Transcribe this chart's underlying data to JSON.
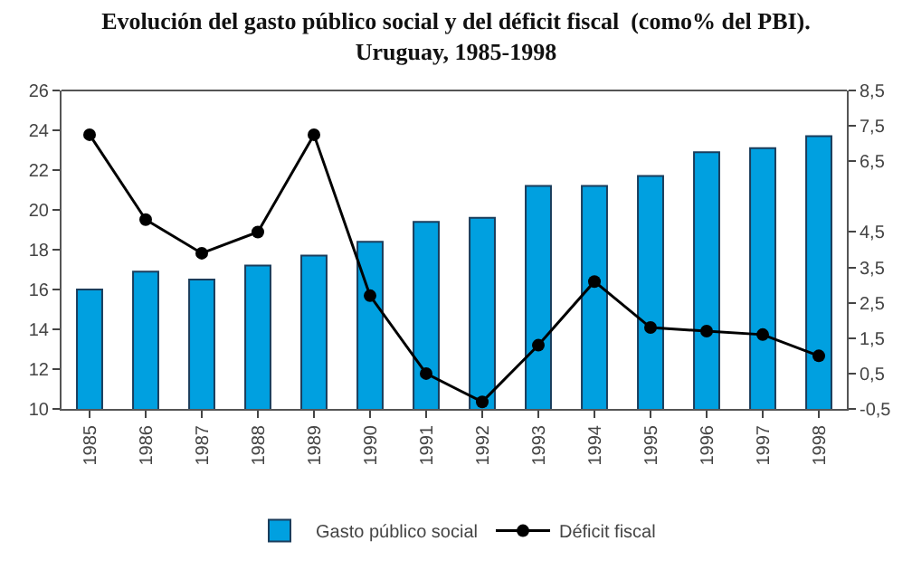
{
  "chart_data": {
    "type": "bar",
    "title": "Evolución del gasto público social y del déficit fiscal  (como% del PBI).\nUruguay, 1985-1998",
    "categories": [
      "1985",
      "1986",
      "1987",
      "1988",
      "1989",
      "1990",
      "1991",
      "1992",
      "1993",
      "1994",
      "1995",
      "1996",
      "1997",
      "1998"
    ],
    "series": [
      {
        "name": "Gasto público social",
        "color": "#00a0e0",
        "values": [
          16.0,
          16.9,
          16.5,
          17.2,
          17.7,
          18.4,
          19.4,
          19.6,
          21.2,
          21.2,
          21.7,
          22.9,
          23.1,
          23.7
        ]
      },
      {
        "name": "Déficit fiscal",
        "type": "line",
        "axis": "y2",
        "color": "#000000",
        "marker": "circle",
        "values": [
          7.25,
          4.85,
          3.9,
          4.5,
          7.25,
          2.7,
          0.5,
          -0.3,
          1.3,
          3.1,
          1.8,
          1.7,
          1.6,
          1.0
        ]
      }
    ],
    "ylim": [
      10,
      26
    ],
    "yticks": [
      10,
      12,
      14,
      16,
      18,
      20,
      22,
      24,
      26
    ],
    "y2lim": [
      -0.5,
      8.5
    ],
    "y2ticks": [
      {
        "value": -0.5,
        "label": "-0,5"
      },
      {
        "value": 0.5,
        "label": "0,5"
      },
      {
        "value": 1.5,
        "label": "1,5"
      },
      {
        "value": 2.5,
        "label": "2,5"
      },
      {
        "value": 3.5,
        "label": "3,5"
      },
      {
        "value": 4.5,
        "label": "4,5"
      },
      {
        "value": 6.5,
        "label": "6,5"
      },
      {
        "value": 7.5,
        "label": "7,5"
      },
      {
        "value": 8.5,
        "label": "8,5"
      }
    ],
    "grid": false,
    "legend": "bottom"
  }
}
